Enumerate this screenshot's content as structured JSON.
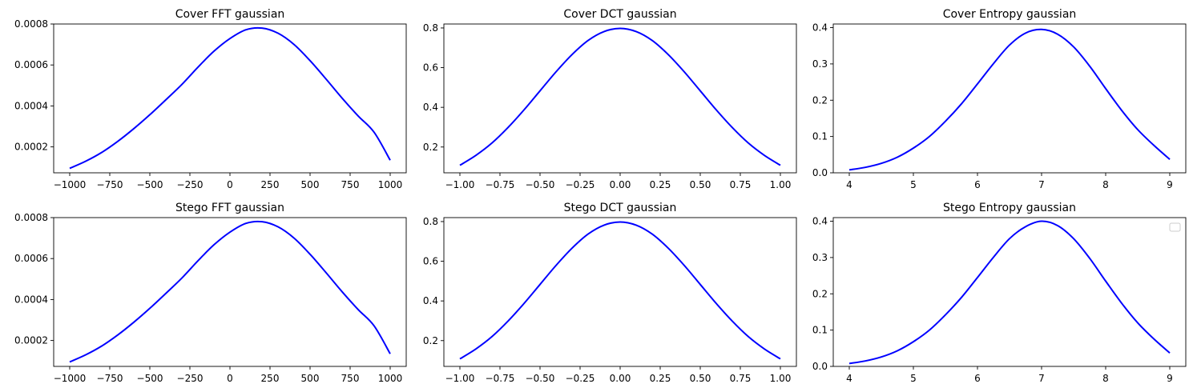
{
  "colors": {
    "line": "#0000ff",
    "axes": "#000000",
    "background": "#ffffff"
  },
  "chart_data": [
    {
      "type": "line",
      "title": "Cover FFT gaussian",
      "xlabel": "",
      "ylabel": "",
      "xlim": [
        -1000,
        1000
      ],
      "ylim": [
        7.35e-05,
        0.0008
      ],
      "xticks": [
        -1000,
        -750,
        -500,
        -250,
        0,
        250,
        500,
        750,
        1000
      ],
      "xtick_labels": [
        "−1000",
        "−750",
        "−500",
        "−250",
        "0",
        "250",
        "500",
        "750",
        "1000"
      ],
      "yticks": [
        0.0002,
        0.0004,
        0.0006,
        0.0008
      ],
      "ytick_labels": [
        "0.0002",
        "0.0004",
        "0.0006",
        "0.0008"
      ],
      "series": [
        {
          "x": [
            -1000,
            -900,
            -800,
            -700,
            -600,
            -500,
            -400,
            -300,
            -200,
            -100,
            0,
            100,
            200,
            300,
            400,
            500,
            600,
            700,
            800,
            900,
            1000
          ],
          "y": [
            9.52e-05,
            0.00013,
            0.000173,
            0.000227,
            0.000289,
            0.000357,
            0.00043,
            0.000505,
            0.000589,
            0.000667,
            0.000729,
            0.000772,
            0.00078,
            0.000755,
            0.0007,
            0.000621,
            0.000531,
            0.000438,
            0.000351,
            0.000271,
            0.000135
          ]
        }
      ],
      "grid": false,
      "legend": false
    },
    {
      "type": "line",
      "title": "Cover DCT gaussian",
      "xlabel": "",
      "ylabel": "",
      "xlim": [
        -1.0,
        1.0
      ],
      "ylim": [
        0.07,
        0.82
      ],
      "xticks": [
        -1.0,
        -0.75,
        -0.5,
        -0.25,
        0,
        0.25,
        0.5,
        0.75,
        1.0
      ],
      "xtick_labels": [
        "−1.00",
        "−0.75",
        "−0.50",
        "−0.25",
        "0.00",
        "0.25",
        "0.50",
        "0.75",
        "1.00"
      ],
      "yticks": [
        0.2,
        0.4,
        0.6,
        0.8
      ],
      "ytick_labels": [
        "0.2",
        "0.4",
        "0.6",
        "0.8"
      ],
      "series": [
        {
          "x": [
            -1.0,
            -0.9,
            -0.8,
            -0.7,
            -0.6,
            -0.5,
            -0.4,
            -0.3,
            -0.2,
            -0.1,
            0.0,
            0.1,
            0.2,
            0.3,
            0.4,
            0.5,
            0.6,
            0.7,
            0.8,
            0.9,
            1.0
          ],
          "y": [
            0.108,
            0.158,
            0.22,
            0.298,
            0.387,
            0.483,
            0.579,
            0.666,
            0.737,
            0.782,
            0.798,
            0.782,
            0.737,
            0.666,
            0.579,
            0.483,
            0.387,
            0.298,
            0.22,
            0.158,
            0.108
          ]
        }
      ],
      "grid": false,
      "legend": false
    },
    {
      "type": "line",
      "title": "Cover Entropy gaussian",
      "xlabel": "",
      "ylabel": "",
      "xlim": [
        4,
        9
      ],
      "ylim": [
        0,
        0.41
      ],
      "xticks": [
        4,
        5,
        6,
        7,
        8,
        9
      ],
      "xtick_labels": [
        "4",
        "5",
        "6",
        "7",
        "8",
        "9"
      ],
      "yticks": [
        0.0,
        0.1,
        0.2,
        0.3,
        0.4
      ],
      "ytick_labels": [
        "0.0",
        "0.1",
        "0.2",
        "0.3",
        "0.4"
      ],
      "series": [
        {
          "x": [
            4.0,
            4.25,
            4.5,
            4.75,
            5.0,
            5.25,
            5.5,
            5.75,
            6.0,
            6.25,
            6.5,
            6.75,
            7.0,
            7.25,
            7.5,
            7.75,
            8.0,
            8.25,
            8.5,
            8.75,
            9.0
          ],
          "y": [
            0.008,
            0.015,
            0.026,
            0.043,
            0.068,
            0.1,
            0.142,
            0.19,
            0.245,
            0.301,
            0.352,
            0.385,
            0.395,
            0.382,
            0.347,
            0.294,
            0.232,
            0.172,
            0.119,
            0.076,
            0.037
          ]
        }
      ],
      "grid": false,
      "legend": false
    },
    {
      "type": "line",
      "title": "Stego FFT gaussian",
      "xlabel": "",
      "ylabel": "",
      "xlim": [
        -1000,
        1000
      ],
      "ylim": [
        7.35e-05,
        0.0008
      ],
      "xticks": [
        -1000,
        -750,
        -500,
        -250,
        0,
        250,
        500,
        750,
        1000
      ],
      "xtick_labels": [
        "−1000",
        "−750",
        "−500",
        "−250",
        "0",
        "250",
        "500",
        "750",
        "1000"
      ],
      "yticks": [
        0.0002,
        0.0004,
        0.0006,
        0.0008
      ],
      "ytick_labels": [
        "0.0002",
        "0.0004",
        "0.0006",
        "0.0008"
      ],
      "series": [
        {
          "x": [
            -1000,
            -900,
            -800,
            -700,
            -600,
            -500,
            -400,
            -300,
            -200,
            -100,
            0,
            100,
            200,
            300,
            400,
            500,
            600,
            700,
            800,
            900,
            1000
          ],
          "y": [
            9.52e-05,
            0.00013,
            0.000173,
            0.000227,
            0.000289,
            0.000357,
            0.00043,
            0.000505,
            0.000589,
            0.000667,
            0.000729,
            0.000772,
            0.00078,
            0.000755,
            0.0007,
            0.000621,
            0.000531,
            0.000438,
            0.000351,
            0.000271,
            0.000135
          ]
        }
      ],
      "grid": false,
      "legend": false
    },
    {
      "type": "line",
      "title": "Stego DCT gaussian",
      "xlabel": "",
      "ylabel": "",
      "xlim": [
        -1.0,
        1.0
      ],
      "ylim": [
        0.07,
        0.82
      ],
      "xticks": [
        -1.0,
        -0.75,
        -0.5,
        -0.25,
        0,
        0.25,
        0.5,
        0.75,
        1.0
      ],
      "xtick_labels": [
        "−1.00",
        "−0.75",
        "−0.50",
        "−0.25",
        "0.00",
        "0.25",
        "0.50",
        "0.75",
        "1.00"
      ],
      "yticks": [
        0.2,
        0.4,
        0.6,
        0.8
      ],
      "ytick_labels": [
        "0.2",
        "0.4",
        "0.6",
        "0.8"
      ],
      "series": [
        {
          "x": [
            -1.0,
            -0.9,
            -0.8,
            -0.7,
            -0.6,
            -0.5,
            -0.4,
            -0.3,
            -0.2,
            -0.1,
            0.0,
            0.1,
            0.2,
            0.3,
            0.4,
            0.5,
            0.6,
            0.7,
            0.8,
            0.9,
            1.0
          ],
          "y": [
            0.108,
            0.158,
            0.22,
            0.298,
            0.387,
            0.483,
            0.579,
            0.666,
            0.737,
            0.782,
            0.798,
            0.782,
            0.737,
            0.666,
            0.579,
            0.483,
            0.387,
            0.298,
            0.22,
            0.158,
            0.108
          ]
        }
      ],
      "grid": false,
      "legend": false
    },
    {
      "type": "line",
      "title": "Stego Entropy gaussian",
      "xlabel": "",
      "ylabel": "",
      "xlim": [
        4,
        9
      ],
      "ylim": [
        0,
        0.41
      ],
      "xticks": [
        4,
        5,
        6,
        7,
        8,
        9
      ],
      "xtick_labels": [
        "4",
        "5",
        "6",
        "7",
        "8",
        "9"
      ],
      "yticks": [
        0.0,
        0.1,
        0.2,
        0.3,
        0.4
      ],
      "ytick_labels": [
        "0.0",
        "0.1",
        "0.2",
        "0.3",
        "0.4"
      ],
      "series": [
        {
          "x": [
            4.0,
            4.25,
            4.5,
            4.75,
            5.0,
            5.25,
            5.5,
            5.75,
            6.0,
            6.25,
            6.5,
            6.75,
            7.0,
            7.25,
            7.5,
            7.75,
            8.0,
            8.25,
            8.5,
            8.75,
            9.0
          ],
          "y": [
            0.008,
            0.015,
            0.026,
            0.043,
            0.068,
            0.1,
            0.142,
            0.19,
            0.245,
            0.301,
            0.352,
            0.385,
            0.4,
            0.388,
            0.352,
            0.298,
            0.235,
            0.174,
            0.12,
            0.076,
            0.037
          ]
        }
      ],
      "grid": false,
      "legend": true,
      "legend_position": "upper right"
    }
  ]
}
